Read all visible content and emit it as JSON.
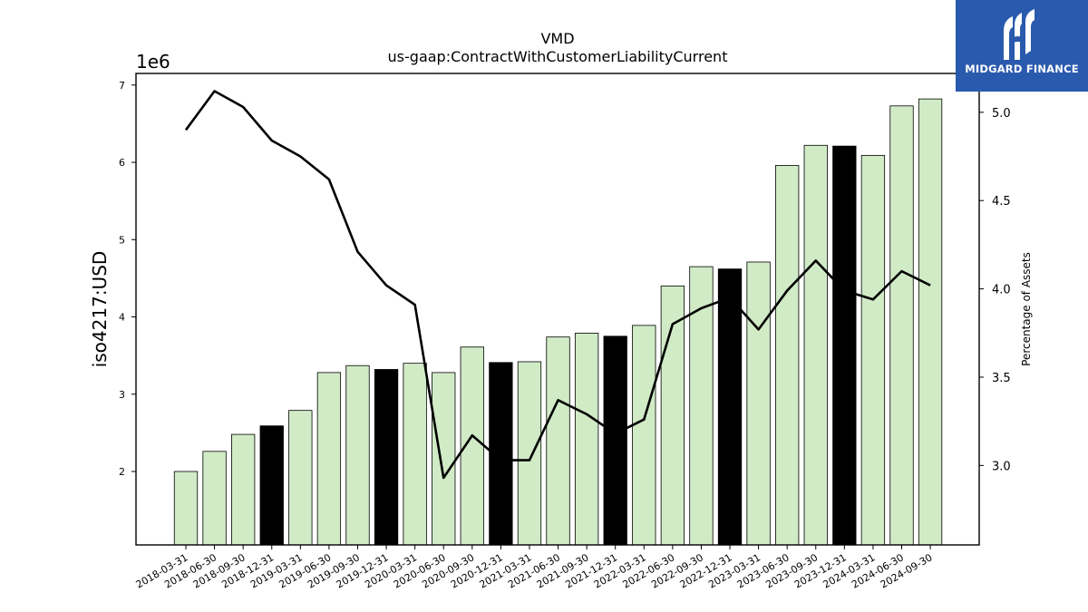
{
  "chart_data": {
    "type": "bar",
    "title": "VMD",
    "subtitle": "us-gaap:ContractWithCustomerLiabilityCurrent",
    "ylabel": "iso4217:USD",
    "y_offset_label": "1e6",
    "y2label": "Percentage of Assets",
    "ylim": [
      1050000,
      7150000
    ],
    "y2lim": [
      2.55,
      5.22
    ],
    "y_ticks": [
      2,
      3,
      4,
      5,
      6,
      7
    ],
    "y2_ticks": [
      "3.0",
      "3.5",
      "4.0",
      "4.5",
      "5.0"
    ],
    "categories": [
      "2018-03-31",
      "2018-06-30",
      "2018-09-30",
      "2018-12-31",
      "2019-03-31",
      "2019-06-30",
      "2019-09-30",
      "2019-12-31",
      "2020-03-31",
      "2020-06-30",
      "2020-09-30",
      "2020-12-31",
      "2021-03-31",
      "2021-06-30",
      "2021-09-30",
      "2021-12-31",
      "2022-03-31",
      "2022-06-30",
      "2022-09-30",
      "2022-12-31",
      "2023-03-31",
      "2023-06-30",
      "2023-09-30",
      "2023-12-31",
      "2024-03-31",
      "2024-06-30",
      "2024-09-30"
    ],
    "series": [
      {
        "type": "bar",
        "values": [
          2000000,
          2260000,
          2480000,
          2590000,
          2790000,
          3280000,
          3370000,
          3320000,
          3400000,
          3280000,
          3610000,
          3410000,
          3420000,
          3740000,
          3790000,
          3750000,
          3890000,
          4400000,
          4650000,
          4620000,
          4710000,
          5960000,
          6220000,
          6210000,
          6090000,
          6730000,
          6820000
        ],
        "highlight": [
          false,
          false,
          false,
          true,
          false,
          false,
          false,
          true,
          false,
          false,
          false,
          true,
          false,
          false,
          false,
          true,
          false,
          false,
          false,
          true,
          false,
          false,
          false,
          true,
          false,
          false,
          false
        ]
      },
      {
        "type": "line",
        "axis": "right",
        "values": [
          4.9,
          5.12,
          5.03,
          4.84,
          4.75,
          4.62,
          4.21,
          4.02,
          3.91,
          2.93,
          3.17,
          3.03,
          3.03,
          3.37,
          3.29,
          3.18,
          3.26,
          3.8,
          3.89,
          3.95,
          3.77,
          3.99,
          4.16,
          3.99,
          3.94,
          4.1,
          4.02
        ]
      }
    ],
    "colors": {
      "bar": "#d0ebc6",
      "bar_highlight": "#000000",
      "line": "#000000"
    }
  },
  "logo": {
    "text": "MIDGARD FINANCE"
  }
}
